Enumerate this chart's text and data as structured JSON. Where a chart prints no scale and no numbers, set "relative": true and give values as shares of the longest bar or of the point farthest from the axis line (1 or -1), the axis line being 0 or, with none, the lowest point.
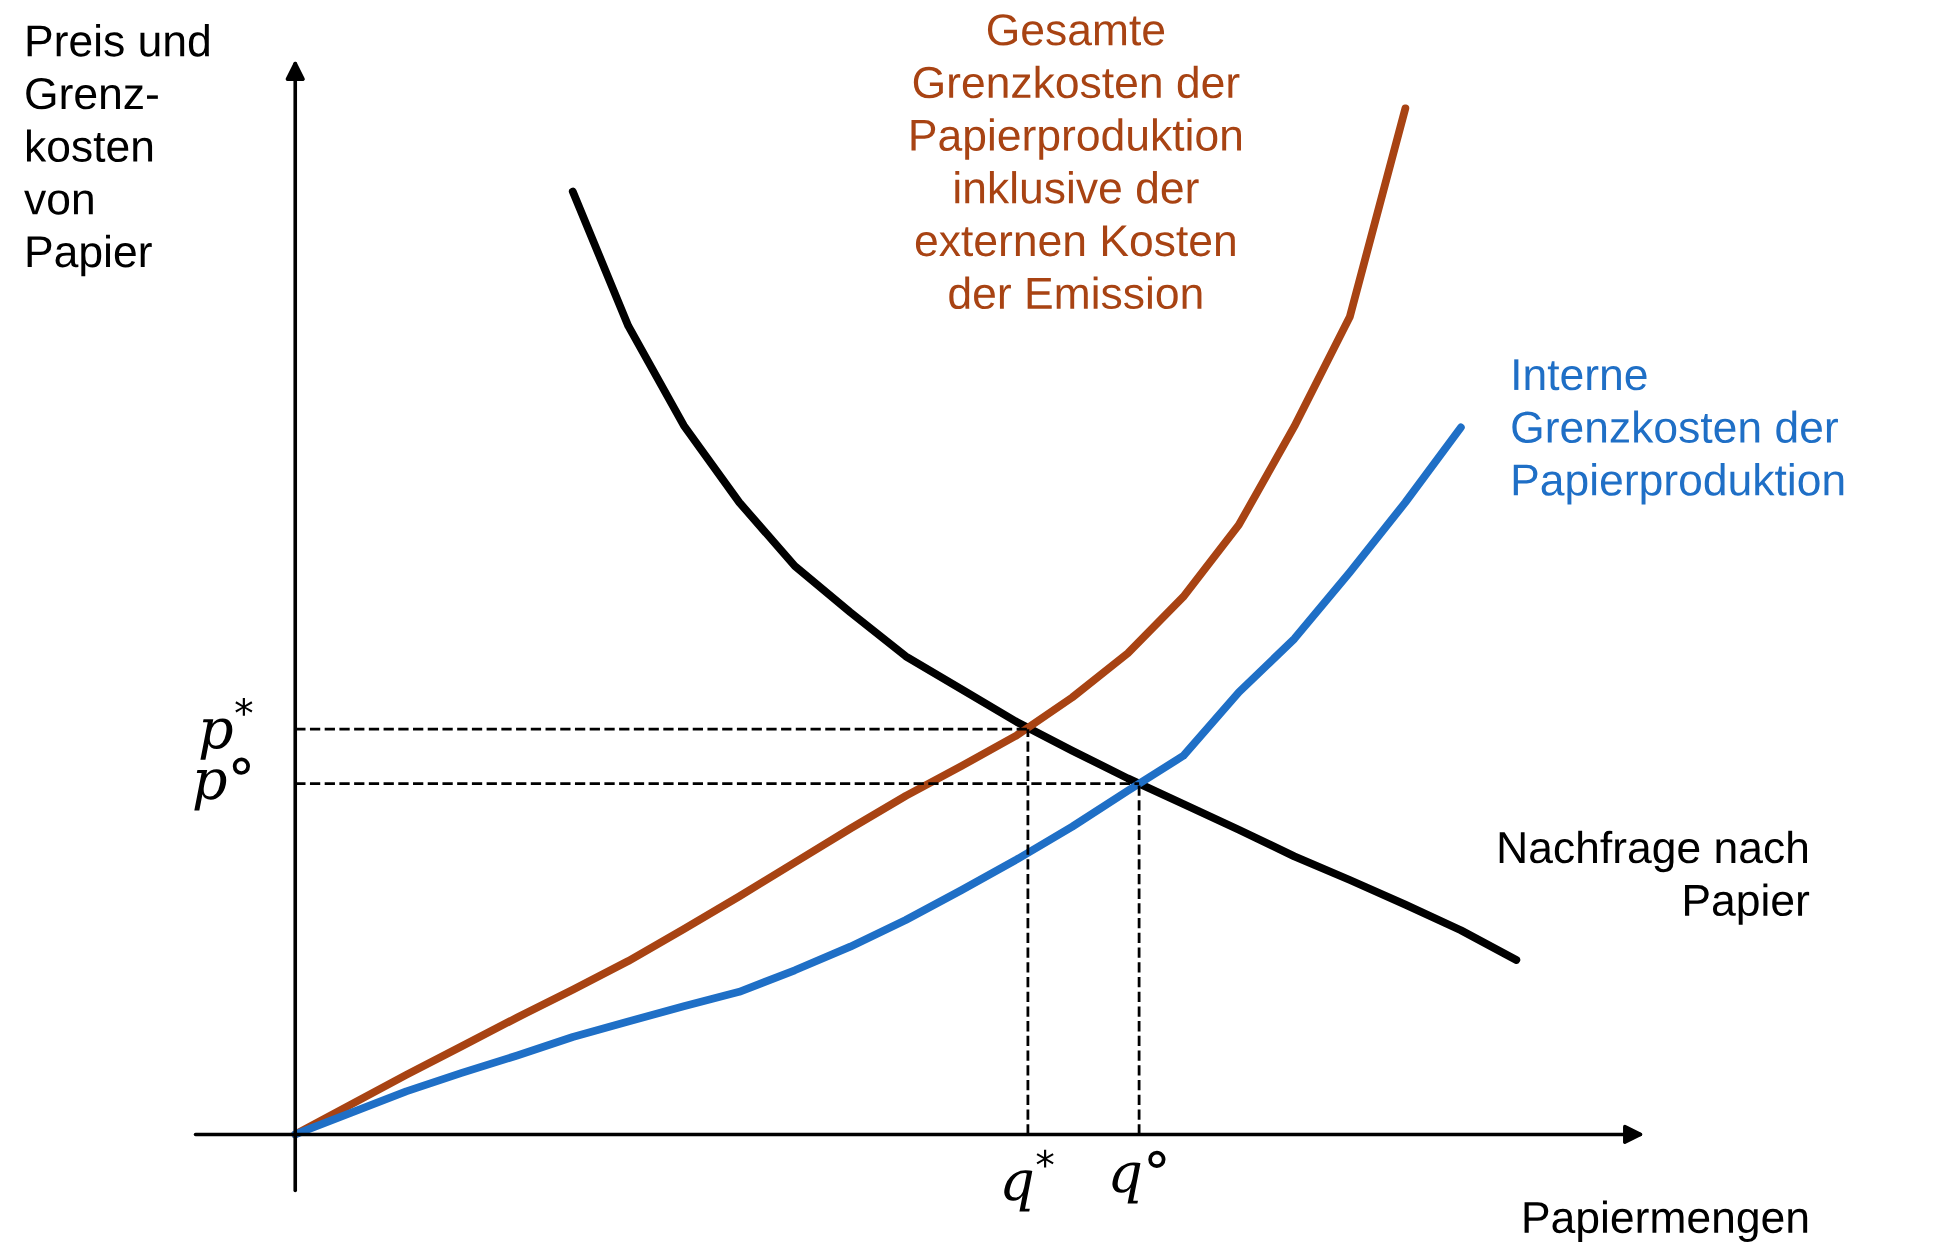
{
  "chart_data": {
    "type": "line",
    "relative": true,
    "ylabel": "Preis und\nGrenz-\nkosten\nvon\nPapier",
    "xlabel": "Papiermengen",
    "marker": "none",
    "line_style": "solid",
    "categories": [
      null,
      null,
      null,
      null,
      null,
      null,
      null,
      null,
      null,
      null,
      null,
      null,
      null,
      null,
      null,
      null,
      null,
      null,
      null,
      null,
      null,
      null,
      null,
      null
    ],
    "series": [
      {
        "name": "Nachfrage nach\nPapier",
        "color": "#000000",
        "values": [
          null,
          null,
          null,
          null,
          null,
          0.919,
          0.788,
          0.691,
          0.616,
          0.554,
          0.509,
          0.466,
          0.434,
          0.402,
          0.374,
          0.347,
          0.322,
          0.297,
          0.271,
          0.248,
          0.224,
          0.199,
          0.17,
          null
        ]
      },
      {
        "name": "Gesamte\nGrenzkosten der\nPapierproduktion\ninklusive der\nexternen Kosten\nder Emission",
        "color": "#a84313",
        "values": [
          0,
          0.029,
          0.058,
          0.086,
          0.114,
          0.141,
          0.169,
          0.2,
          0.232,
          0.265,
          0.298,
          0.33,
          0.359,
          0.389,
          0.426,
          0.469,
          0.524,
          0.594,
          0.69,
          0.797,
          1.0,
          null,
          null,
          null
        ]
      },
      {
        "name": "Interne\nGrenzkosten der\nPapierproduktion",
        "color": "#1f6fc6",
        "values": [
          0,
          0.021,
          0.042,
          0.06,
          0.077,
          0.095,
          0.11,
          0.125,
          0.139,
          0.16,
          0.183,
          0.209,
          0.238,
          0.268,
          0.3,
          0.335,
          0.369,
          0.431,
          0.483,
          0.548,
          0.616,
          0.689,
          null,
          null
        ]
      }
    ],
    "ref_lines": [
      {
        "axis": "y",
        "value": 0.395,
        "label": "p$^{*}$",
        "line_style": "dashed",
        "color": "#000000"
      },
      {
        "axis": "y",
        "value": 0.342,
        "label": "p°",
        "line_style": "dashed",
        "color": "#000000"
      }
    ],
    "annotations": [
      "q$^{*}$",
      "q°"
    ]
  }
}
